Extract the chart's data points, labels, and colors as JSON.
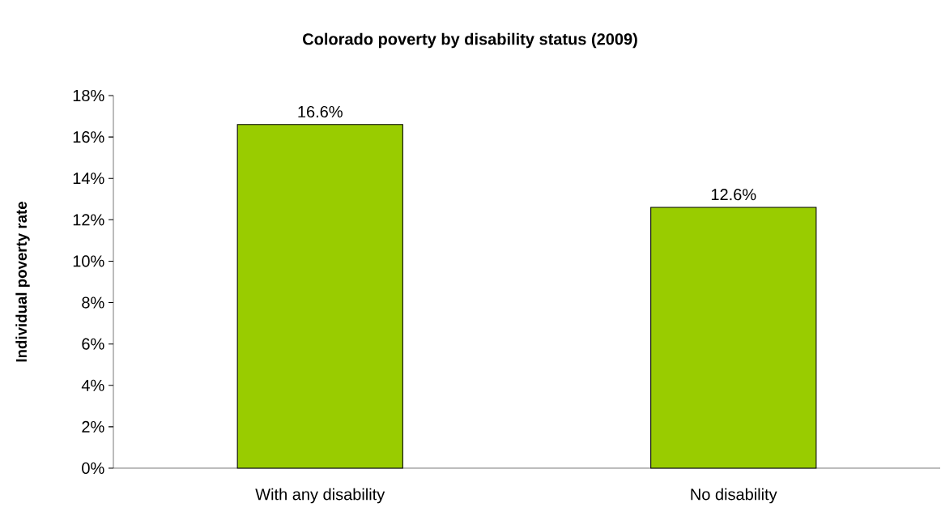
{
  "chart_data": {
    "type": "bar",
    "title": "Colorado poverty by disability status (2009)",
    "ylabel": "Individual poverty rate",
    "categories": [
      "With any disability",
      "No disability"
    ],
    "values": [
      16.6,
      12.6
    ],
    "value_labels": [
      "16.6%",
      "12.6%"
    ],
    "color": "#99cc00",
    "ylim": [
      0,
      18
    ],
    "yticks": [
      {
        "value": 0,
        "label": "0%"
      },
      {
        "value": 2,
        "label": "2%"
      },
      {
        "value": 4,
        "label": "4%"
      },
      {
        "value": 6,
        "label": "6%"
      },
      {
        "value": 8,
        "label": "8%"
      },
      {
        "value": 10,
        "label": "10%"
      },
      {
        "value": 12,
        "label": "12%"
      },
      {
        "value": 14,
        "label": "14%"
      },
      {
        "value": 16,
        "label": "16%"
      },
      {
        "value": 18,
        "label": "18%"
      }
    ]
  }
}
